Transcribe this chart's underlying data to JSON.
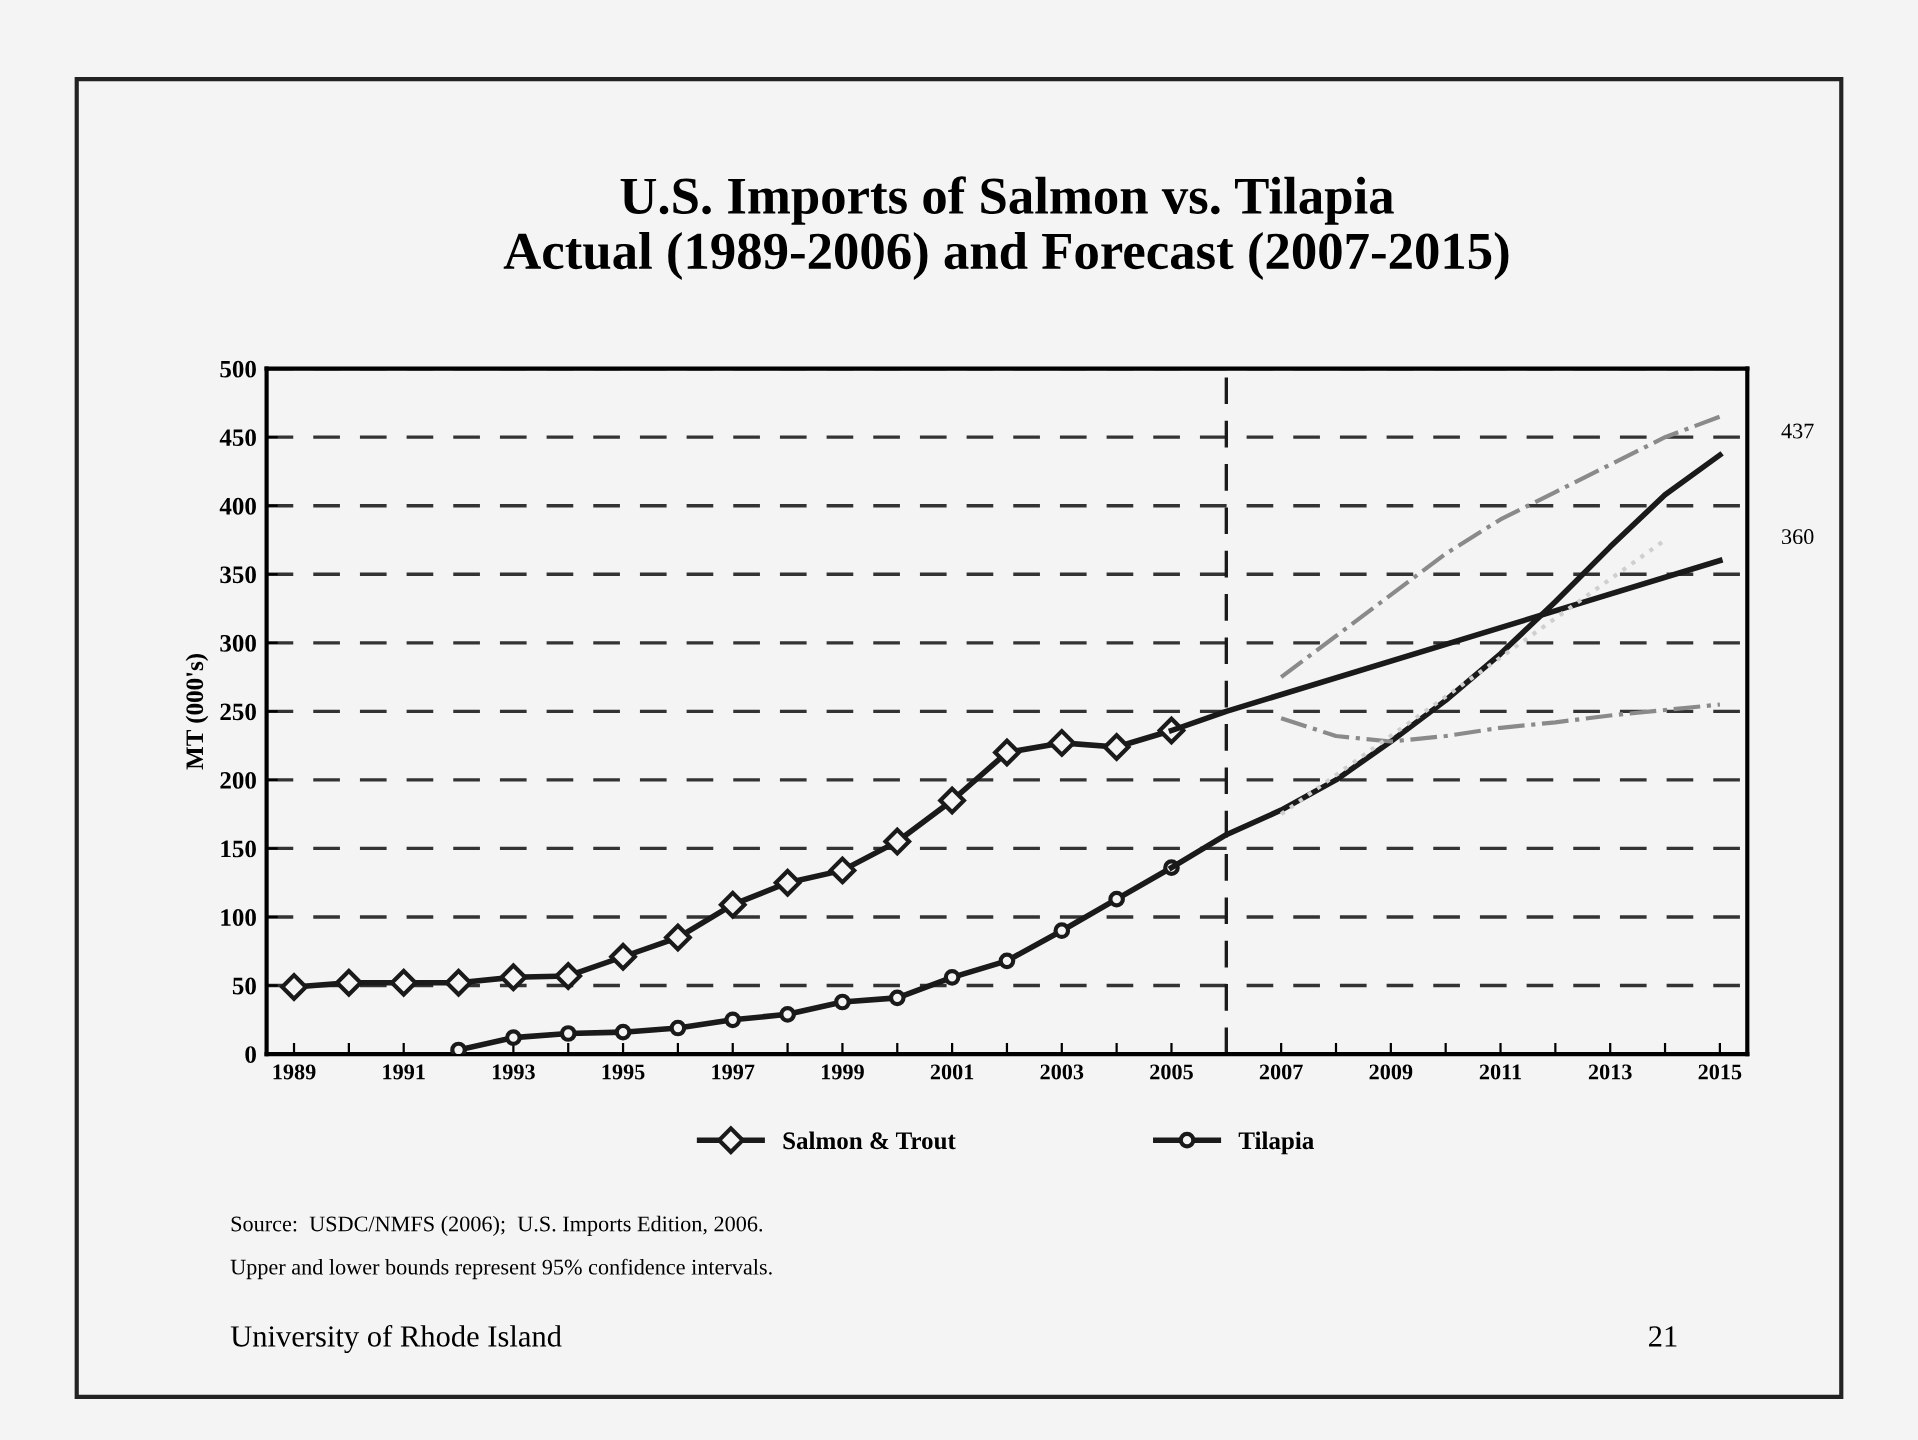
{
  "chart_data": {
    "type": "line",
    "title": "U.S. Imports of Salmon vs. Tilapia\nActual (1989-2006) and Forecast (2007-2015)",
    "ylabel": "MT (000's)",
    "xlim": [
      1988.5,
      2015.5
    ],
    "xticks": [
      1989,
      {
        "value": 1990,
        "label": null
      },
      1991,
      {
        "value": 1992,
        "label": null
      },
      1993,
      {
        "value": 1994,
        "label": null
      },
      1995,
      {
        "value": 1996,
        "label": null
      },
      1997,
      {
        "value": 1998,
        "label": null
      },
      1999,
      {
        "value": 2000,
        "label": null
      },
      2001,
      {
        "value": 2002,
        "label": null
      },
      2003,
      {
        "value": 2004,
        "label": null
      },
      2005,
      {
        "value": 2006,
        "label": null
      },
      2007,
      {
        "value": 2008,
        "label": null
      },
      2009,
      {
        "value": 2010,
        "label": null
      },
      2011,
      {
        "value": 2012,
        "label": null
      },
      2013,
      {
        "value": 2014,
        "label": null
      },
      2015
    ],
    "ylim": [
      0,
      500
    ],
    "yticks": [
      0,
      50,
      100,
      150,
      200,
      250,
      300,
      350,
      400,
      450,
      500
    ],
    "grid": "y",
    "legend": "bottom",
    "series": [
      {
        "name": "Salmon & Trout",
        "color": "#1a1a1a",
        "marker": "diamond",
        "line_style": "solid",
        "x": [
          1989,
          1990,
          1991,
          1992,
          1993,
          1994,
          1995,
          1996,
          1997,
          1998,
          1999,
          2000,
          2001,
          2002,
          2003,
          2004,
          2005
        ],
        "values": [
          49,
          52,
          52,
          52,
          56,
          57,
          71,
          85,
          109,
          125,
          134,
          155,
          185,
          220,
          227,
          224,
          236
        ]
      },
      {
        "name": "Tilapia",
        "color": "#1a1a1a",
        "marker": "circle",
        "line_style": "solid",
        "x": [
          1992,
          1993,
          1994,
          1995,
          1996,
          1997,
          1998,
          1999,
          2000,
          2001,
          2002,
          2003,
          2004,
          2005
        ],
        "values": [
          3,
          12,
          15,
          16,
          19,
          25,
          29,
          38,
          41,
          56,
          68,
          90,
          113,
          136
        ]
      },
      {
        "color": "#1a1a1a",
        "marker": "none",
        "line_style": "solid",
        "x": [
          2005,
          2006,
          2015
        ],
        "values": [
          236,
          250,
          360
        ]
      },
      {
        "color": "#1a1a1a",
        "marker": "none",
        "line_style": "solid",
        "x": [
          2005,
          2006,
          2007,
          2008,
          2009,
          2010,
          2011,
          2012,
          2013,
          2014,
          2015
        ],
        "values": [
          136,
          160,
          178,
          200,
          228,
          258,
          292,
          330,
          370,
          408,
          437
        ]
      },
      {
        "color": "#8a8a8a",
        "marker": "none",
        "line_style": "dashdot",
        "x": [
          2007,
          2008,
          2009,
          2010,
          2011,
          2012,
          2013,
          2014,
          2015
        ],
        "values": [
          275,
          305,
          335,
          365,
          390,
          410,
          430,
          450,
          465
        ]
      },
      {
        "color": "#8a8a8a",
        "marker": "none",
        "line_style": "dashdot",
        "x": [
          2007,
          2008,
          2009,
          2010,
          2011,
          2012,
          2013,
          2014,
          2015
        ],
        "values": [
          245,
          232,
          228,
          232,
          238,
          242,
          247,
          251,
          255
        ]
      },
      {
        "color": "#cfcfcf",
        "marker": "none",
        "line_style": "dotted",
        "x": [
          2007,
          2014
        ],
        "values": [
          175,
          375
        ]
      }
    ],
    "ref_lines": [
      {
        "axis": "x",
        "value": 2006,
        "color": "#1a1a1a",
        "line_style": "dashed"
      }
    ],
    "annotations": [
      {
        "text": "437",
        "x": 2015,
        "y": 437
      },
      {
        "text": "360",
        "x": 2015,
        "y": 360
      },
      "Source:  USDC/NMFS (2006);  U.S. Imports Edition, 2006.",
      "Upper and lower bounds represent 95% confidence intervals.",
      "University of Rhode Island",
      "21"
    ]
  }
}
